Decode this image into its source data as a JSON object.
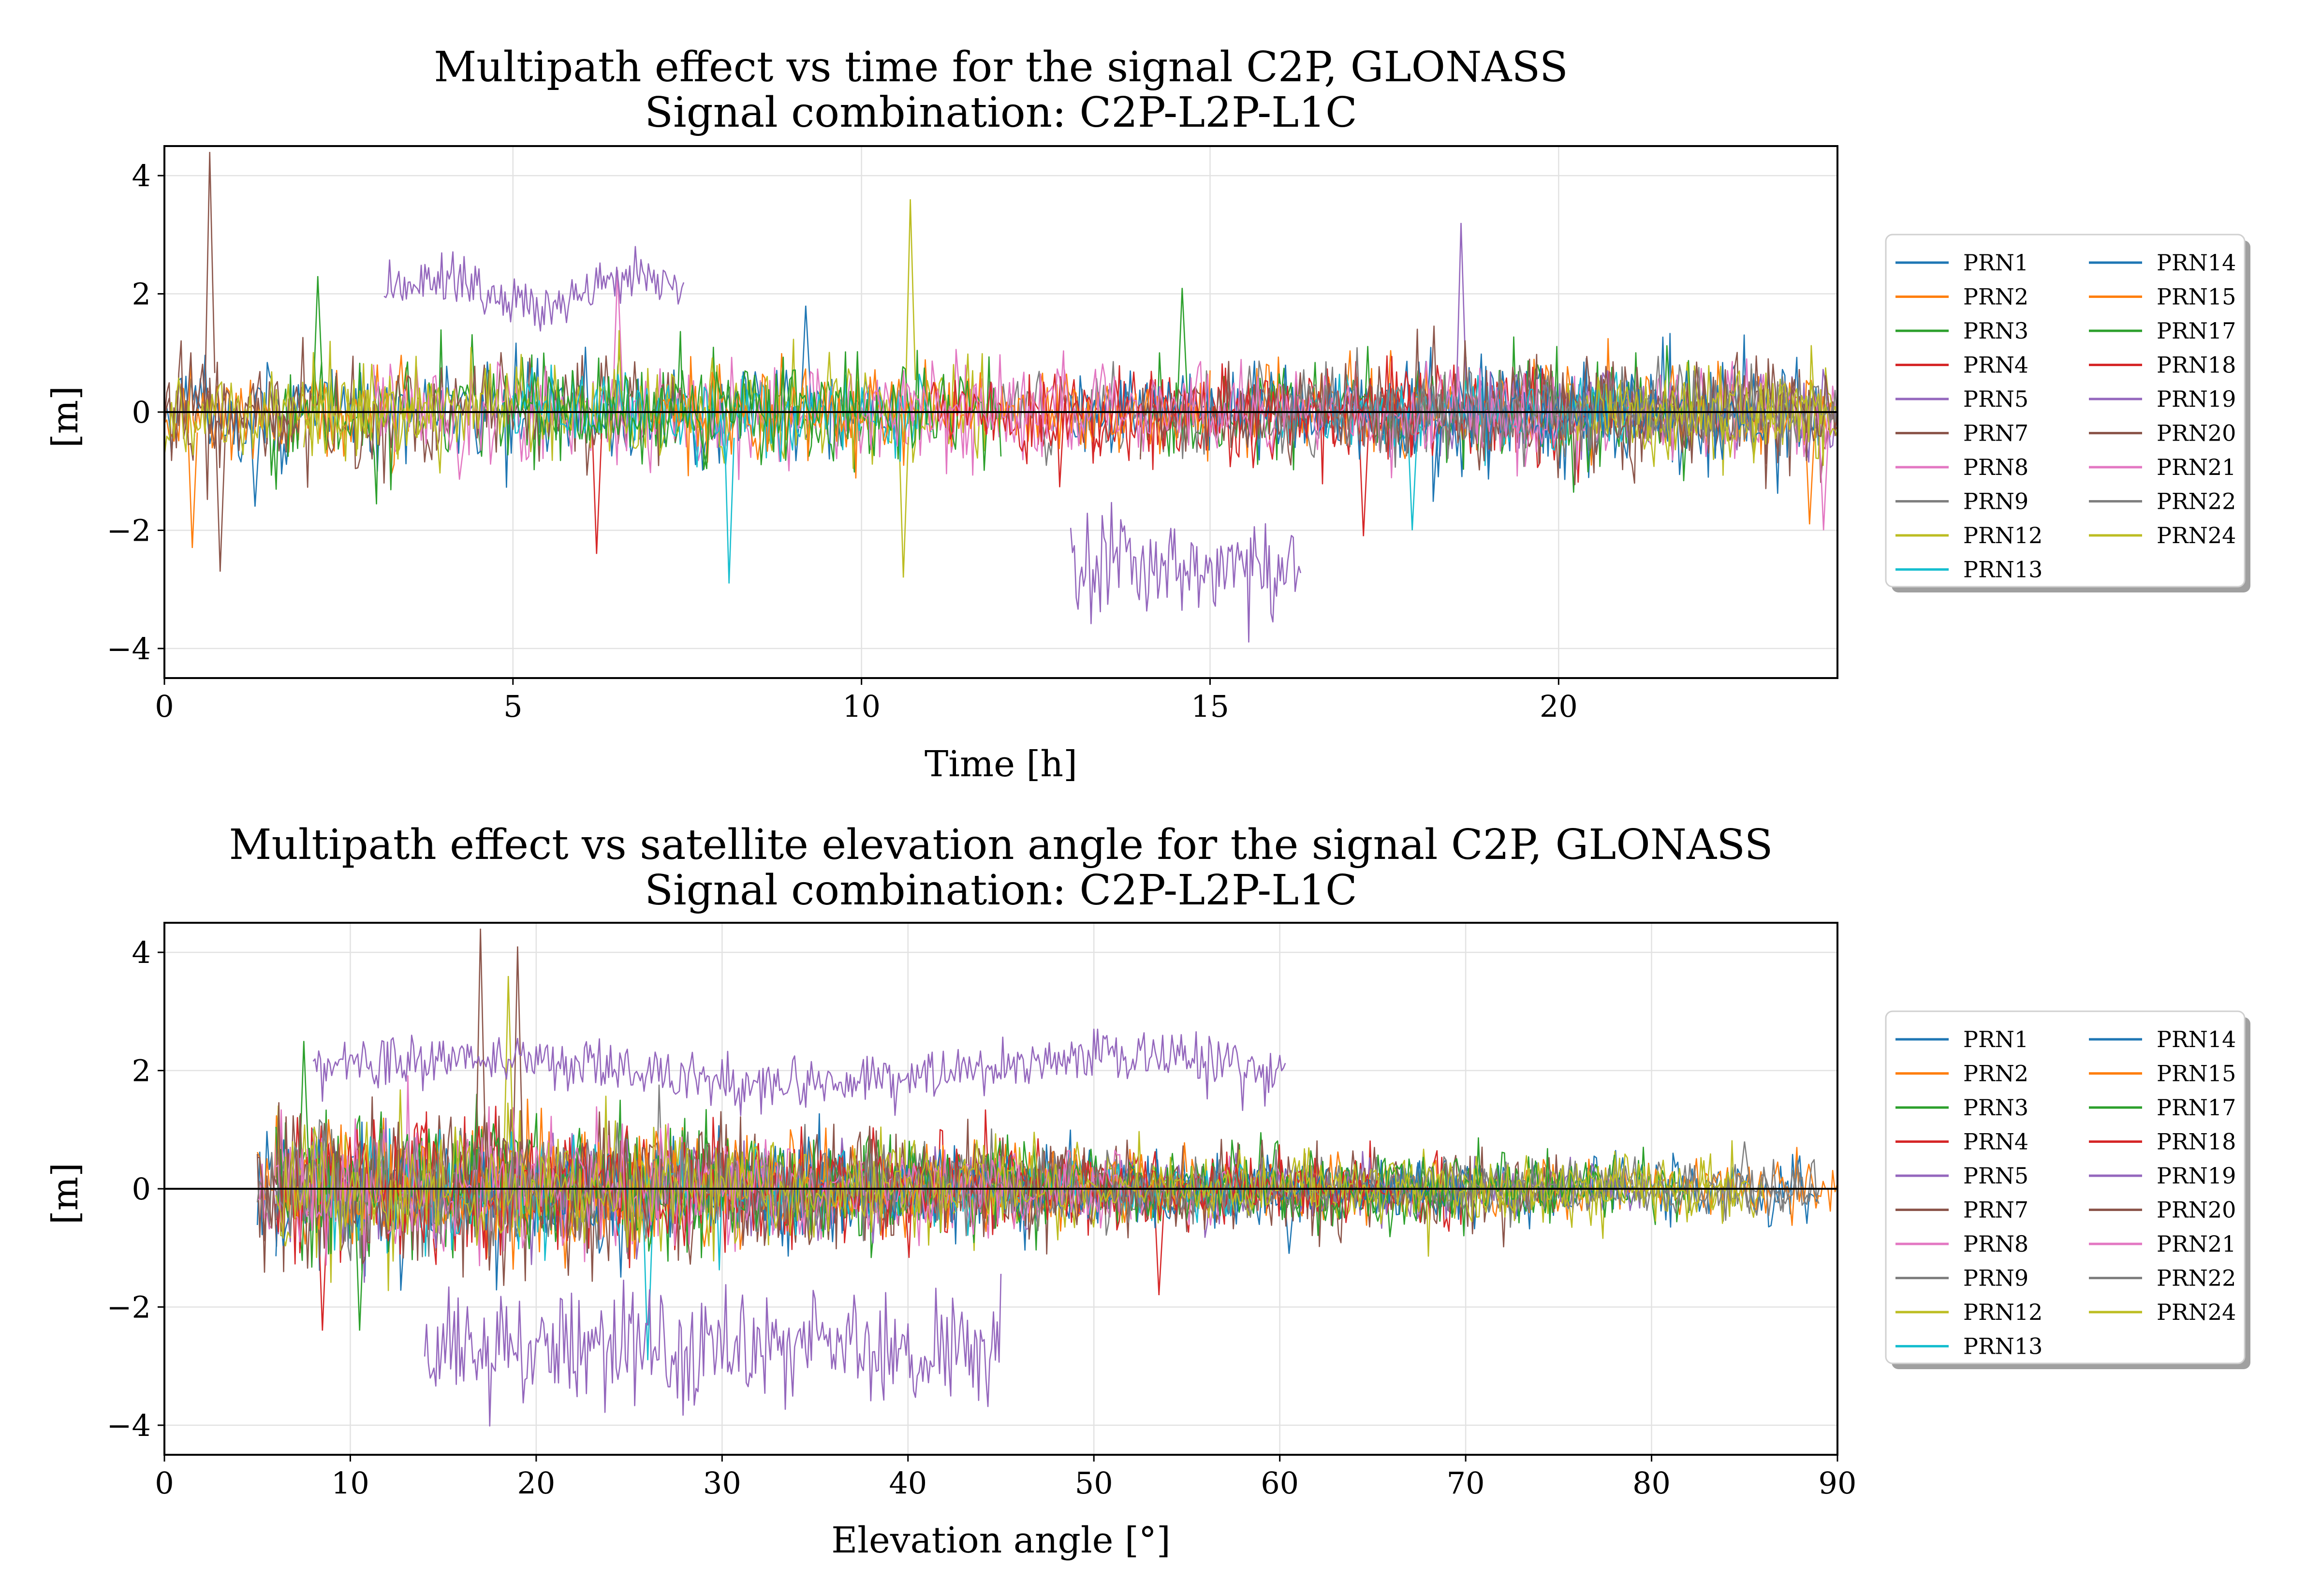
{
  "chart_data": [
    {
      "type": "line",
      "title": "Multipath effect vs time for the signal C2P, GLONASS",
      "subtitle": "Signal combination: C2P-L2P-L1C",
      "xlabel": "Time [h]",
      "ylabel": "[m]",
      "xlim": [
        0,
        24
      ],
      "ylim": [
        -4.5,
        4.5
      ],
      "xticks": [
        "0",
        "5",
        "10",
        "15",
        "20"
      ],
      "xtick_values": [
        0,
        5,
        10,
        15,
        20
      ],
      "yticks": [
        "−4",
        "−2",
        "0",
        "2",
        "4"
      ],
      "ytick_values": [
        -4,
        -2,
        0,
        2,
        4
      ],
      "grid": true,
      "zero_line": true,
      "legend_position": "right",
      "legend_columns": 2,
      "series": [
        {
          "name": "PRN1",
          "color": "#1f77b4",
          "segments": [
            [
              0.0,
              10.5
            ],
            [
              17.0,
              24.0
            ]
          ],
          "noise": 0.45,
          "spike": [
            [
              9.2,
              1.8
            ],
            [
              1.3,
              -1.6
            ]
          ]
        },
        {
          "name": "PRN2",
          "color": "#ff7f0e",
          "segments": [
            [
              0.0,
              3.5
            ],
            [
              15.5,
              24.0
            ]
          ],
          "noise": 0.4,
          "spike": [
            [
              23.6,
              -1.9
            ],
            [
              0.4,
              -2.3
            ]
          ]
        },
        {
          "name": "PRN3",
          "color": "#2ca02c",
          "segments": [
            [
              1.5,
              10.0
            ],
            [
              14.0,
              22.0
            ]
          ],
          "noise": 0.45,
          "spike": [
            [
              2.2,
              2.3
            ],
            [
              14.6,
              2.1
            ]
          ]
        },
        {
          "name": "PRN4",
          "color": "#d62728",
          "segments": [
            [
              12.5,
              21.0
            ]
          ],
          "noise": 0.45,
          "spike": [
            [
              17.2,
              -2.1
            ],
            [
              6.2,
              -2.4
            ]
          ]
        },
        {
          "name": "PRN5",
          "color": "#9467bd",
          "segments": [
            [
              18.3,
              24.0
            ]
          ],
          "noise": 0.35,
          "spike": [
            [
              18.6,
              3.2
            ]
          ]
        },
        {
          "name": "PRN7",
          "color": "#8c564b",
          "segments": [
            [
              0.0,
              7.5
            ],
            [
              19.0,
              24.0
            ]
          ],
          "noise": 0.5,
          "spike": [
            [
              0.65,
              4.4
            ],
            [
              0.8,
              -2.7
            ]
          ]
        },
        {
          "name": "PRN8",
          "color": "#e377c2",
          "segments": [
            [
              3.0,
              13.0
            ],
            [
              18.0,
              24.0
            ]
          ],
          "noise": 0.45,
          "spike": [
            [
              6.5,
              2.4
            ],
            [
              23.8,
              -2.0
            ]
          ]
        },
        {
          "name": "PRN9",
          "color": "#7f7f7f",
          "segments": [
            [
              12.0,
              24.0
            ]
          ],
          "noise": 0.35,
          "spike": []
        },
        {
          "name": "PRN12",
          "color": "#bcbd22",
          "segments": [
            [
              2.0,
              11.8
            ],
            [
              20.0,
              24.0
            ]
          ],
          "noise": 0.45,
          "spike": [
            [
              10.7,
              3.6
            ],
            [
              10.6,
              -2.8
            ]
          ]
        },
        {
          "name": "PRN13",
          "color": "#17becf",
          "segments": [
            [
              5.0,
              11.0
            ],
            [
              16.0,
              21.0
            ]
          ],
          "noise": 0.35,
          "spike": [
            [
              8.1,
              -2.9
            ],
            [
              17.9,
              -2.0
            ]
          ]
        },
        {
          "name": "PRN14",
          "color": "#1f77b4",
          "segments": [
            [
              13.0,
              23.0
            ]
          ],
          "noise": 0.35,
          "spike": []
        },
        {
          "name": "PRN15",
          "color": "#ff7f0e",
          "segments": [
            [
              7.0,
              15.0
            ]
          ],
          "noise": 0.35,
          "spike": []
        },
        {
          "name": "PRN17",
          "color": "#2ca02c",
          "segments": [
            [
              5.0,
              12.0
            ]
          ],
          "noise": 0.4,
          "spike": []
        },
        {
          "name": "PRN18",
          "color": "#d62728",
          "segments": [
            [
              11.0,
              18.0
            ]
          ],
          "noise": 0.35,
          "spike": []
        },
        {
          "name": "PRN19",
          "color": "#9467bd",
          "segments": [
            [
              3.15,
              7.45
            ],
            [
              13.0,
              16.3
            ]
          ],
          "noise": 0.3,
          "spike": []
        },
        {
          "name": "PRN20",
          "color": "#8c564b",
          "segments": [
            [
              0.0,
              2.0
            ],
            [
              14.0,
              24.0
            ]
          ],
          "noise": 0.4,
          "spike": []
        },
        {
          "name": "PRN21",
          "color": "#e377c2",
          "segments": [
            [
              10.0,
              20.0
            ]
          ],
          "noise": 0.35,
          "spike": []
        },
        {
          "name": "PRN22",
          "color": "#7f7f7f",
          "segments": [
            [
              16.0,
              24.0
            ]
          ],
          "noise": 0.35,
          "spike": []
        },
        {
          "name": "PRN24",
          "color": "#bcbd22",
          "segments": [
            [
              0.0,
              4.0
            ],
            [
              20.5,
              24.0
            ]
          ],
          "noise": 0.35,
          "spike": []
        }
      ],
      "offset_tracks": [
        {
          "series": "PRN19",
          "x_range": [
            3.15,
            7.45
          ],
          "mean": 2.0,
          "peak": 2.8
        },
        {
          "series": "PRN19",
          "x_range": [
            13.0,
            16.3
          ],
          "mean": -2.6,
          "min": -4.5
        }
      ]
    },
    {
      "type": "line",
      "title": "Multipath effect vs satellite elevation angle for the signal C2P, GLONASS",
      "subtitle": "Signal combination: C2P-L2P-L1C",
      "xlabel": "Elevation angle [°]",
      "ylabel": "[m]",
      "xlim": [
        0,
        90
      ],
      "ylim": [
        -4.5,
        4.5
      ],
      "xticks": [
        "0",
        "10",
        "20",
        "30",
        "40",
        "50",
        "60",
        "70",
        "80",
        "90"
      ],
      "xtick_values": [
        0,
        10,
        20,
        30,
        40,
        50,
        60,
        70,
        80,
        90
      ],
      "yticks": [
        "−4",
        "−2",
        "0",
        "2",
        "4"
      ],
      "ytick_values": [
        -4,
        -2,
        0,
        2,
        4
      ],
      "grid": true,
      "zero_line": true,
      "legend_position": "right",
      "legend_columns": 2,
      "series": [
        {
          "name": "PRN1",
          "color": "#1f77b4",
          "segments": [
            [
              5,
              89
            ]
          ],
          "noise": 0.4,
          "spike": [
            [
              60.5,
              -1.1
            ]
          ]
        },
        {
          "name": "PRN2",
          "color": "#ff7f0e",
          "segments": [
            [
              5,
              90
            ]
          ],
          "noise": 0.4,
          "spike": []
        },
        {
          "name": "PRN3",
          "color": "#2ca02c",
          "segments": [
            [
              6,
              82
            ]
          ],
          "noise": 0.45,
          "spike": [
            [
              7.5,
              2.5
            ],
            [
              10.5,
              -2.4
            ]
          ]
        },
        {
          "name": "PRN4",
          "color": "#d62728",
          "segments": [
            [
              6,
              70
            ]
          ],
          "noise": 0.45,
          "spike": [
            [
              8.5,
              -2.4
            ],
            [
              53.5,
              -1.8
            ]
          ]
        },
        {
          "name": "PRN5",
          "color": "#9467bd",
          "segments": [
            [
              6,
              80
            ]
          ],
          "noise": 0.35,
          "spike": []
        },
        {
          "name": "PRN7",
          "color": "#8c564b",
          "segments": [
            [
              5,
              75
            ]
          ],
          "noise": 0.5,
          "spike": [
            [
              17.0,
              4.4
            ],
            [
              19.0,
              4.1
            ]
          ]
        },
        {
          "name": "PRN8",
          "color": "#e377c2",
          "segments": [
            [
              5,
              60
            ]
          ],
          "noise": 0.45,
          "spike": []
        },
        {
          "name": "PRN9",
          "color": "#7f7f7f",
          "segments": [
            [
              5,
              89
            ]
          ],
          "noise": 0.35,
          "spike": [
            [
              85,
              0.8
            ]
          ]
        },
        {
          "name": "PRN12",
          "color": "#bcbd22",
          "segments": [
            [
              6,
              86
            ]
          ],
          "noise": 0.45,
          "spike": [
            [
              18.5,
              3.6
            ]
          ]
        },
        {
          "name": "PRN13",
          "color": "#17becf",
          "segments": [
            [
              8,
              58
            ]
          ],
          "noise": 0.35,
          "spike": [
            [
              26.0,
              -2.9
            ]
          ]
        },
        {
          "name": "PRN14",
          "color": "#1f77b4",
          "segments": [
            [
              6,
              70
            ]
          ],
          "noise": 0.35,
          "spike": []
        },
        {
          "name": "PRN15",
          "color": "#ff7f0e",
          "segments": [
            [
              6,
              55
            ]
          ],
          "noise": 0.35,
          "spike": []
        },
        {
          "name": "PRN17",
          "color": "#2ca02c",
          "segments": [
            [
              6,
              78
            ]
          ],
          "noise": 0.4,
          "spike": []
        },
        {
          "name": "PRN18",
          "color": "#d62728",
          "segments": [
            [
              6,
              66
            ]
          ],
          "noise": 0.35,
          "spike": []
        },
        {
          "name": "PRN19",
          "color": "#9467bd",
          "segments": [
            [
              8,
              60.3
            ],
            [
              14,
              45
            ]
          ],
          "noise": 0.3,
          "spike": []
        },
        {
          "name": "PRN20",
          "color": "#8c564b",
          "segments": [
            [
              5,
              55
            ]
          ],
          "noise": 0.4,
          "spike": []
        },
        {
          "name": "PRN21",
          "color": "#e377c2",
          "segments": [
            [
              6,
              52
            ]
          ],
          "noise": 0.35,
          "spike": []
        },
        {
          "name": "PRN22",
          "color": "#7f7f7f",
          "segments": [
            [
              6,
              89
            ]
          ],
          "noise": 0.35,
          "spike": []
        },
        {
          "name": "PRN24",
          "color": "#bcbd22",
          "segments": [
            [
              6,
              85
            ]
          ],
          "noise": 0.35,
          "spike": []
        }
      ],
      "offset_tracks": [
        {
          "series": "PRN19",
          "x_range": [
            8,
            60.3
          ],
          "mean": 2.0,
          "peak": 2.7
        },
        {
          "series": "PRN19",
          "x_range": [
            14,
            45
          ],
          "mean": -2.7,
          "min": -4.5
        }
      ]
    }
  ]
}
